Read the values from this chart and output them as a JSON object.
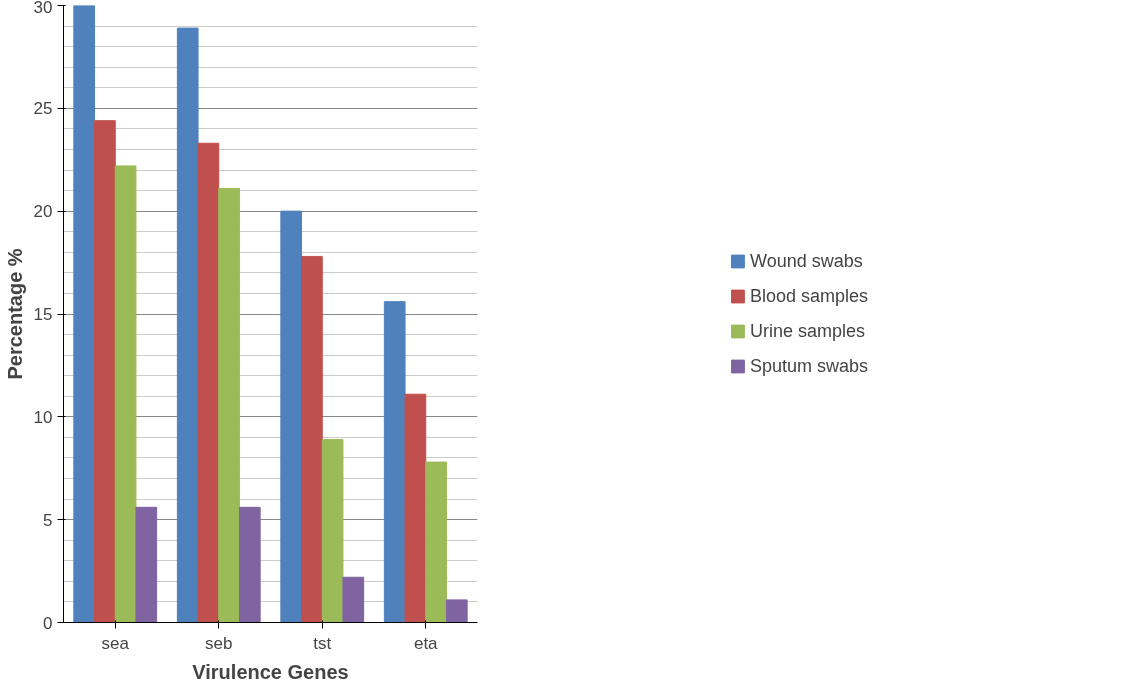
{
  "chart_data": {
    "type": "bar",
    "xlabel": "Virulence Genes",
    "ylabel": "Percentage %",
    "categories": [
      "sea",
      "seb",
      "tst",
      "eta"
    ],
    "series": [
      {
        "name": "Wound swabs",
        "color": "#4f81bd",
        "values": [
          30,
          28.9,
          20,
          15.6
        ]
      },
      {
        "name": "Blood samples",
        "color": "#c0504d",
        "values": [
          24.4,
          23.3,
          17.8,
          11.1
        ]
      },
      {
        "name": "Urine samples",
        "color": "#9bbb59",
        "values": [
          22.2,
          21.1,
          8.9,
          7.8
        ]
      },
      {
        "name": "Sputum swabs",
        "color": "#8064a2",
        "values": [
          5.6,
          5.6,
          2.2,
          1.1
        ]
      }
    ],
    "ylim": [
      0,
      30
    ],
    "yticks": [
      0,
      5,
      10,
      15,
      20,
      25,
      30
    ],
    "grid": "y",
    "legend": "right"
  }
}
